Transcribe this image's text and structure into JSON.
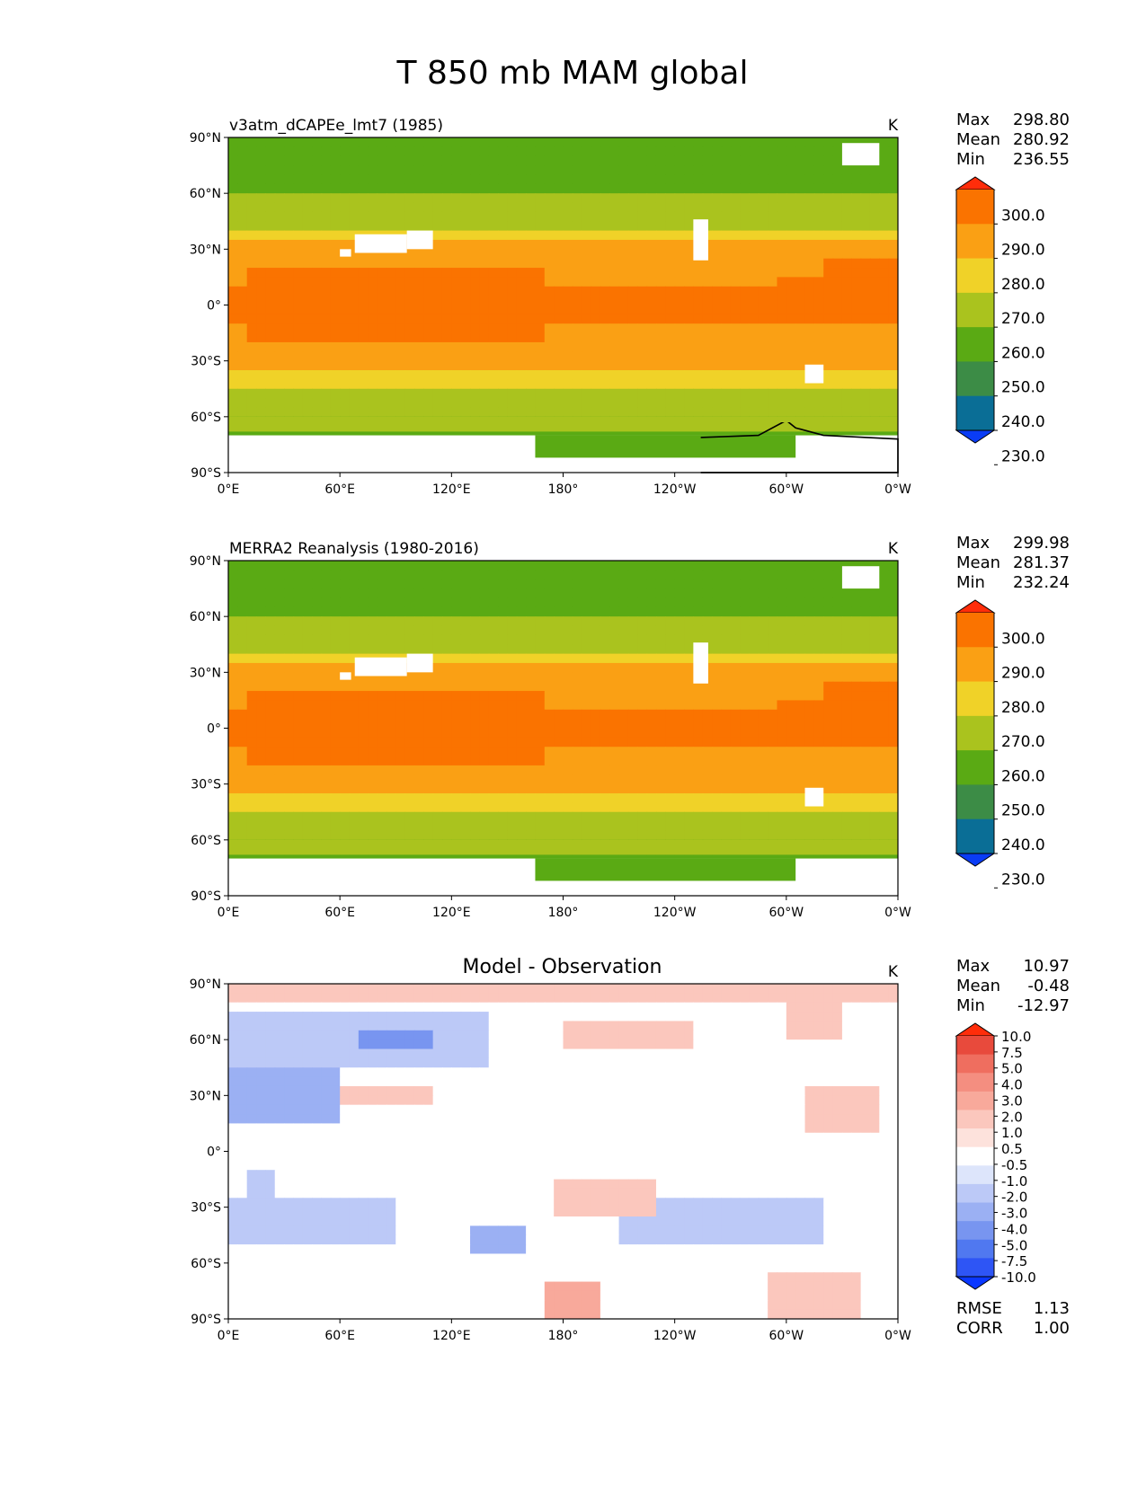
{
  "page_title": "T 850 mb MAM global",
  "colors": {
    "abs_levels": [
      "#0a3cf5",
      "#0a6e96",
      "#3c8c46",
      "#5aaa14",
      "#aac31e",
      "#f0d228",
      "#faa014",
      "#fa7300",
      "#ff2d0a"
    ],
    "diff_levels": [
      "#0a37ff",
      "#2e55f5",
      "#5078f0",
      "#7895f0",
      "#9bb0f3",
      "#bcc9f7",
      "#dde5fb",
      "#ffffff",
      "#fde2dc",
      "#fbc7bd",
      "#f8a99b",
      "#f48e80",
      "#ef6e5f",
      "#e84a3c",
      "#ff2d0a"
    ],
    "land_outline": "#000000",
    "missing": "#ffffff"
  },
  "chart_data": [
    {
      "type": "heatmap",
      "projection": "plate-carree",
      "title": "v3atm_dCAPEe_lmt7 (1985)",
      "units": "K",
      "stats": {
        "max_label": "Max",
        "max": "298.80",
        "mean_label": "Mean",
        "mean": "280.92",
        "min_label": "Min",
        "min": "236.55"
      },
      "colorbar": {
        "levels": [
          230,
          240,
          250,
          260,
          270,
          280,
          290,
          300
        ],
        "tick_labels": [
          "300.0",
          "290.0",
          "280.0",
          "270.0",
          "260.0",
          "250.0",
          "240.0",
          "230.0"
        ],
        "extend": "both"
      },
      "x_ticks": [
        "0°E",
        "60°E",
        "120°E",
        "180°",
        "120°W",
        "60°W",
        "0°W"
      ],
      "y_ticks": [
        "90°N",
        "60°N",
        "30°N",
        "0°",
        "30°S",
        "60°S",
        "90°S"
      ],
      "xlim": [
        0,
        360
      ],
      "ylim": [
        -90,
        90
      ]
    },
    {
      "type": "heatmap",
      "projection": "plate-carree",
      "title": "MERRA2 Reanalysis (1980-2016)",
      "units": "K",
      "stats": {
        "max_label": "Max",
        "max": "299.98",
        "mean_label": "Mean",
        "mean": "281.37",
        "min_label": "Min",
        "min": "232.24"
      },
      "colorbar": {
        "levels": [
          230,
          240,
          250,
          260,
          270,
          280,
          290,
          300
        ],
        "tick_labels": [
          "300.0",
          "290.0",
          "280.0",
          "270.0",
          "260.0",
          "250.0",
          "240.0",
          "230.0"
        ],
        "extend": "both"
      },
      "x_ticks": [
        "0°E",
        "60°E",
        "120°E",
        "180°",
        "120°W",
        "60°W",
        "0°W"
      ],
      "y_ticks": [
        "90°N",
        "60°N",
        "30°N",
        "0°",
        "30°S",
        "60°S",
        "90°S"
      ],
      "xlim": [
        0,
        360
      ],
      "ylim": [
        -90,
        90
      ]
    },
    {
      "type": "heatmap",
      "projection": "plate-carree",
      "title": "Model - Observation",
      "units": "K",
      "stats": {
        "max_label": "Max",
        "max": "10.97",
        "mean_label": "Mean",
        "mean": "-0.48",
        "min_label": "Min",
        "min": "-12.97"
      },
      "metrics": {
        "rmse_label": "RMSE",
        "rmse": "1.13",
        "corr_label": "CORR",
        "corr": "1.00"
      },
      "colorbar": {
        "levels": [
          -10,
          -7.5,
          -5,
          -4,
          -3,
          -2,
          -1,
          -0.5,
          0.5,
          1,
          2,
          3,
          4,
          5,
          7.5,
          10
        ],
        "tick_labels": [
          "10.0",
          "7.5",
          "5.0",
          "4.0",
          "3.0",
          "2.0",
          "1.0",
          "0.5",
          "-0.5",
          "-1.0",
          "-2.0",
          "-3.0",
          "-4.0",
          "-5.0",
          "-7.5",
          "-10.0"
        ],
        "extend": "both"
      },
      "x_ticks": [
        "0°E",
        "60°E",
        "120°E",
        "180°",
        "120°W",
        "60°W",
        "0°W"
      ],
      "y_ticks": [
        "90°N",
        "60°N",
        "30°N",
        "0°",
        "30°S",
        "60°S",
        "90°S"
      ],
      "xlim": [
        0,
        360
      ],
      "ylim": [
        -90,
        90
      ]
    }
  ]
}
